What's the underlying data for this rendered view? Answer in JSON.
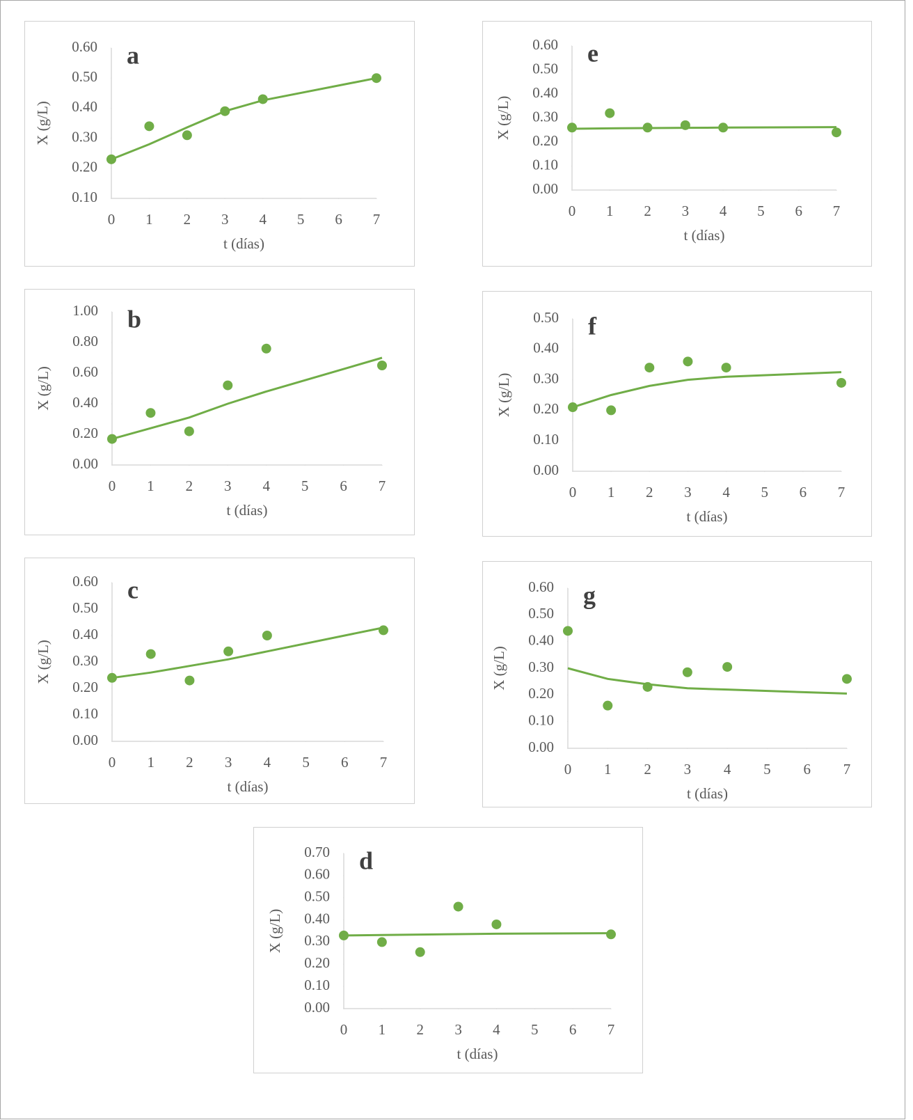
{
  "chart_data": [
    {
      "type": "scatter",
      "title": "a",
      "xlabel": "t (días)",
      "ylabel": "X (g/L)",
      "x": [
        0,
        1,
        2,
        3,
        4,
        7
      ],
      "xlim": [
        0,
        7
      ],
      "xticks": [
        0,
        1,
        2,
        3,
        4,
        5,
        6,
        7
      ],
      "ylim": [
        0.1,
        0.6
      ],
      "yticks": [
        {
          "value": 0.1,
          "label": "0.10"
        },
        {
          "value": 0.2,
          "label": "0.20"
        },
        {
          "value": 0.3,
          "label": "0.30"
        },
        {
          "value": 0.4,
          "label": "0.40"
        },
        {
          "value": 0.5,
          "label": "0.50"
        },
        {
          "value": 0.6,
          "label": "0.60"
        }
      ],
      "series": [
        {
          "style": "markers",
          "color": "#70ad47",
          "values": [
            0.23,
            0.34,
            0.31,
            0.39,
            0.43,
            0.5
          ]
        },
        {
          "style": "line",
          "color": "#70ad47",
          "values": [
            0.23,
            0.28,
            0.336,
            0.39,
            0.426,
            0.5
          ]
        }
      ]
    },
    {
      "type": "scatter",
      "title": "b",
      "xlabel": "t (días)",
      "ylabel": "X (g/L)",
      "x": [
        0,
        1,
        2,
        3,
        4,
        7
      ],
      "xlim": [
        0,
        7
      ],
      "xticks": [
        0,
        1,
        2,
        3,
        4,
        5,
        6,
        7
      ],
      "ylim": [
        0,
        1
      ],
      "yticks": [
        {
          "value": 0,
          "label": "0.00"
        },
        {
          "value": 0.2,
          "label": "0.20"
        },
        {
          "value": 0.4,
          "label": "0.40"
        },
        {
          "value": 0.6,
          "label": "0.60"
        },
        {
          "value": 0.8,
          "label": "0.80"
        },
        {
          "value": 1,
          "label": "1.00"
        }
      ],
      "series": [
        {
          "style": "markers",
          "color": "#70ad47",
          "values": [
            0.17,
            0.34,
            0.22,
            0.52,
            0.76,
            0.65
          ]
        },
        {
          "style": "line",
          "color": "#70ad47",
          "values": [
            0.17,
            0.24,
            0.31,
            0.4,
            0.48,
            0.7
          ]
        }
      ]
    },
    {
      "type": "scatter",
      "title": "c",
      "xlabel": "t (días)",
      "ylabel": "X (g/L)",
      "x": [
        0,
        1,
        2,
        3,
        4,
        7
      ],
      "xlim": [
        0,
        7
      ],
      "xticks": [
        0,
        1,
        2,
        3,
        4,
        5,
        6,
        7
      ],
      "ylim": [
        0,
        0.6
      ],
      "yticks": [
        {
          "value": 0,
          "label": "0.00"
        },
        {
          "value": 0.1,
          "label": "0.10"
        },
        {
          "value": 0.2,
          "label": "0.20"
        },
        {
          "value": 0.3,
          "label": "0.30"
        },
        {
          "value": 0.4,
          "label": "0.40"
        },
        {
          "value": 0.5,
          "label": "0.50"
        },
        {
          "value": 0.6,
          "label": "0.60"
        }
      ],
      "series": [
        {
          "style": "markers",
          "color": "#70ad47",
          "values": [
            0.24,
            0.33,
            0.23,
            0.34,
            0.4,
            0.42
          ]
        },
        {
          "style": "line",
          "color": "#70ad47",
          "values": [
            0.24,
            0.26,
            0.285,
            0.31,
            0.34,
            0.43
          ]
        }
      ]
    },
    {
      "type": "scatter",
      "title": "d",
      "xlabel": "t (días)",
      "ylabel": "X (g/L)",
      "x": [
        0,
        1,
        2,
        3,
        4,
        7
      ],
      "xlim": [
        0,
        7
      ],
      "xticks": [
        0,
        1,
        2,
        3,
        4,
        5,
        6,
        7
      ],
      "ylim": [
        0,
        0.7
      ],
      "yticks": [
        {
          "value": 0,
          "label": "0.00"
        },
        {
          "value": 0.1,
          "label": "0.10"
        },
        {
          "value": 0.2,
          "label": "0.20"
        },
        {
          "value": 0.3,
          "label": "0.30"
        },
        {
          "value": 0.4,
          "label": "0.40"
        },
        {
          "value": 0.5,
          "label": "0.50"
        },
        {
          "value": 0.6,
          "label": "0.60"
        },
        {
          "value": 0.7,
          "label": "0.70"
        }
      ],
      "series": [
        {
          "style": "markers",
          "color": "#70ad47",
          "values": [
            0.33,
            0.3,
            0.255,
            0.46,
            0.38,
            0.335
          ]
        },
        {
          "style": "line",
          "color": "#70ad47",
          "values": [
            0.33,
            0.332,
            0.334,
            0.336,
            0.338,
            0.34
          ]
        }
      ]
    },
    {
      "type": "scatter",
      "title": "e",
      "xlabel": "t (días)",
      "ylabel": "X (g/L)",
      "x": [
        0,
        1,
        2,
        3,
        4,
        7
      ],
      "xlim": [
        0,
        7
      ],
      "xticks": [
        0,
        1,
        2,
        3,
        4,
        5,
        6,
        7
      ],
      "ylim": [
        0,
        0.6
      ],
      "yticks": [
        {
          "value": 0,
          "label": "0.00"
        },
        {
          "value": 0.1,
          "label": "0.10"
        },
        {
          "value": 0.2,
          "label": "0.20"
        },
        {
          "value": 0.3,
          "label": "0.30"
        },
        {
          "value": 0.4,
          "label": "0.40"
        },
        {
          "value": 0.5,
          "label": "0.50"
        },
        {
          "value": 0.6,
          "label": "0.60"
        }
      ],
      "series": [
        {
          "style": "markers",
          "color": "#70ad47",
          "values": [
            0.26,
            0.32,
            0.26,
            0.27,
            0.26,
            0.24
          ]
        },
        {
          "style": "line",
          "color": "#70ad47",
          "values": [
            0.255,
            0.257,
            0.258,
            0.259,
            0.26,
            0.262
          ]
        }
      ]
    },
    {
      "type": "scatter",
      "title": "f",
      "xlabel": "t (días)",
      "ylabel": "X (g/L)",
      "x": [
        0,
        1,
        2,
        3,
        4,
        7
      ],
      "xlim": [
        0,
        7
      ],
      "xticks": [
        0,
        1,
        2,
        3,
        4,
        5,
        6,
        7
      ],
      "ylim": [
        0,
        0.5
      ],
      "yticks": [
        {
          "value": 0,
          "label": "0.00"
        },
        {
          "value": 0.1,
          "label": "0.10"
        },
        {
          "value": 0.2,
          "label": "0.20"
        },
        {
          "value": 0.3,
          "label": "0.30"
        },
        {
          "value": 0.4,
          "label": "0.40"
        },
        {
          "value": 0.5,
          "label": "0.50"
        }
      ],
      "series": [
        {
          "style": "markers",
          "color": "#70ad47",
          "values": [
            0.21,
            0.2,
            0.34,
            0.36,
            0.34,
            0.29
          ]
        },
        {
          "style": "line",
          "color": "#70ad47",
          "values": [
            0.21,
            0.25,
            0.28,
            0.3,
            0.31,
            0.325
          ]
        }
      ]
    },
    {
      "type": "scatter",
      "title": "g",
      "xlabel": "t (días)",
      "ylabel": "X (g/L)",
      "x": [
        0,
        1,
        2,
        3,
        4,
        7
      ],
      "xlim": [
        0,
        7
      ],
      "xticks": [
        0,
        1,
        2,
        3,
        4,
        5,
        6,
        7
      ],
      "ylim": [
        0,
        0.6
      ],
      "yticks": [
        {
          "value": 0,
          "label": "0.00"
        },
        {
          "value": 0.1,
          "label": "0.10"
        },
        {
          "value": 0.2,
          "label": "0.20"
        },
        {
          "value": 0.3,
          "label": "0.30"
        },
        {
          "value": 0.4,
          "label": "0.40"
        },
        {
          "value": 0.5,
          "label": "0.50"
        },
        {
          "value": 0.6,
          "label": "0.60"
        }
      ],
      "series": [
        {
          "style": "markers",
          "color": "#70ad47",
          "values": [
            0.44,
            0.16,
            0.23,
            0.285,
            0.305,
            0.26
          ]
        },
        {
          "style": "line",
          "color": "#70ad47",
          "values": [
            0.3,
            0.26,
            0.24,
            0.225,
            0.22,
            0.205
          ]
        }
      ]
    }
  ]
}
